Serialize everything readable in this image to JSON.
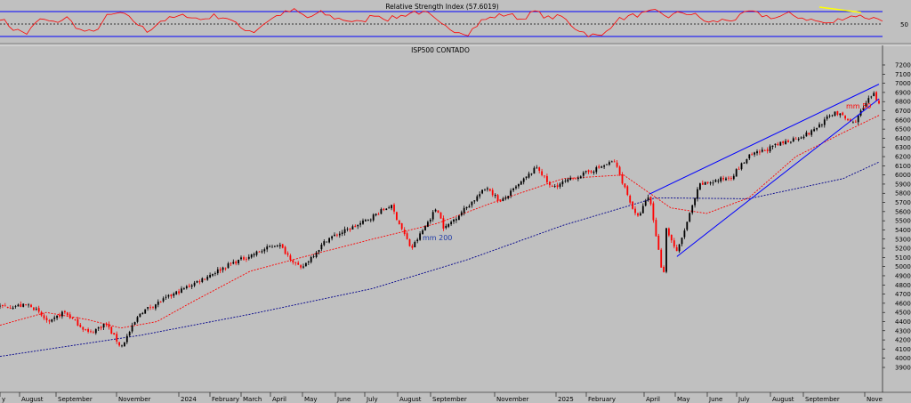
{
  "colors": {
    "background": "#c0c0c0",
    "rsi_line": "#ff0000",
    "rsi_band": "#0000ff",
    "trendline": "#0000ff",
    "ma50": "#ff0000",
    "ma200": "#00008b",
    "up_candle": "#000000",
    "down_candle": "#ff0000",
    "rsi_divergence": "#ffff00"
  },
  "chart_data": [
    {
      "type": "line",
      "panel": "rsi",
      "title": "Relative Strength Index (57.6019)",
      "y_tick_labels": [
        "50"
      ],
      "bands": [
        30,
        70
      ],
      "midline": 50,
      "ylim": [
        0,
        100
      ],
      "series": [
        {
          "values": [
            60,
            42,
            35,
            58,
            52,
            60,
            40,
            36,
            62,
            68,
            55,
            38,
            55,
            60,
            64,
            57,
            63,
            60,
            44,
            38,
            55,
            66,
            72,
            60,
            68,
            60,
            56,
            52,
            66,
            58,
            63,
            70,
            66,
            48,
            40,
            35,
            55,
            62,
            66,
            58,
            70,
            60,
            62,
            44,
            33,
            30,
            55,
            62,
            66,
            70,
            62,
            69,
            64,
            52,
            56,
            58,
            70,
            64,
            60,
            66,
            60,
            55,
            50,
            60,
            64,
            60,
            58
          ]
        }
      ]
    },
    {
      "type": "line",
      "panel": "price",
      "title": "ISP500 CONTADO",
      "ylim": [
        3800,
        7250
      ],
      "y_ticks": [
        3900,
        4000,
        4100,
        4200,
        4300,
        4400,
        4500,
        4600,
        4700,
        4800,
        4900,
        5000,
        5100,
        5200,
        5300,
        5400,
        5500,
        5600,
        5700,
        5800,
        5900,
        6000,
        6100,
        6200,
        6300,
        6400,
        6500,
        6600,
        6700,
        6800,
        6900,
        7000,
        7100,
        7200
      ],
      "x_tick_labels": [
        "y",
        "August",
        "September",
        "November",
        "2024",
        "February",
        "March",
        "April",
        "May",
        "June",
        "July",
        "August",
        "September",
        "November",
        "2025",
        "February",
        "April",
        "May",
        "June",
        "July",
        "August",
        "September",
        "Nove"
      ],
      "annotations": [
        "mm 200",
        "mm 50"
      ],
      "price_series": [
        {
          "date": "2023-07-01",
          "close": 4560
        },
        {
          "date": "2023-07-31",
          "close": 4580
        },
        {
          "date": "2023-08-18",
          "close": 4380
        },
        {
          "date": "2023-09-01",
          "close": 4510
        },
        {
          "date": "2023-09-26",
          "close": 4270
        },
        {
          "date": "2023-10-12",
          "close": 4380
        },
        {
          "date": "2023-10-27",
          "close": 4120
        },
        {
          "date": "2023-11-15",
          "close": 4500
        },
        {
          "date": "2023-12-29",
          "close": 4770
        },
        {
          "date": "2024-02-09",
          "close": 5020
        },
        {
          "date": "2024-03-28",
          "close": 5250
        },
        {
          "date": "2024-04-19",
          "close": 4970
        },
        {
          "date": "2024-05-15",
          "close": 5300
        },
        {
          "date": "2024-06-17",
          "close": 5470
        },
        {
          "date": "2024-07-16",
          "close": 5670
        },
        {
          "date": "2024-08-05",
          "close": 5190
        },
        {
          "date": "2024-08-30",
          "close": 5650
        },
        {
          "date": "2024-09-06",
          "close": 5410
        },
        {
          "date": "2024-10-18",
          "close": 5870
        },
        {
          "date": "2024-10-31",
          "close": 5700
        },
        {
          "date": "2024-12-06",
          "close": 6090
        },
        {
          "date": "2024-12-19",
          "close": 5860
        },
        {
          "date": "2025-02-19",
          "close": 6150
        },
        {
          "date": "2025-03-13",
          "close": 5520
        },
        {
          "date": "2025-03-25",
          "close": 5780
        },
        {
          "date": "2025-04-08",
          "close": 4850
        },
        {
          "date": "2025-04-09",
          "close": 5460
        },
        {
          "date": "2025-04-21",
          "close": 5150
        },
        {
          "date": "2025-05-13",
          "close": 5890
        },
        {
          "date": "2025-06-13",
          "close": 5980
        },
        {
          "date": "2025-06-30",
          "close": 6200
        },
        {
          "date": "2025-07-31",
          "close": 6340
        },
        {
          "date": "2025-08-29",
          "close": 6460
        },
        {
          "date": "2025-09-22",
          "close": 6690
        },
        {
          "date": "2025-10-10",
          "close": 6560
        },
        {
          "date": "2025-10-29",
          "close": 6890
        },
        {
          "date": "2025-11-04",
          "close": 6780
        }
      ],
      "ma50_series": [
        {
          "date": "2023-07-01",
          "close": 4360
        },
        {
          "date": "2023-08-15",
          "close": 4500
        },
        {
          "date": "2023-09-25",
          "close": 4420
        },
        {
          "date": "2023-10-27",
          "close": 4330
        },
        {
          "date": "2023-12-01",
          "close": 4400
        },
        {
          "date": "2024-01-02",
          "close": 4600
        },
        {
          "date": "2024-03-01",
          "close": 4950
        },
        {
          "date": "2024-04-30",
          "close": 5130
        },
        {
          "date": "2024-06-28",
          "close": 5300
        },
        {
          "date": "2024-08-30",
          "close": 5470
        },
        {
          "date": "2024-10-31",
          "close": 5730
        },
        {
          "date": "2024-12-31",
          "close": 5960
        },
        {
          "date": "2025-02-28",
          "close": 6000
        },
        {
          "date": "2025-04-15",
          "close": 5640
        },
        {
          "date": "2025-05-20",
          "close": 5580
        },
        {
          "date": "2025-06-30",
          "close": 5750
        },
        {
          "date": "2025-08-15",
          "close": 6200
        },
        {
          "date": "2025-09-30",
          "close": 6460
        },
        {
          "date": "2025-11-04",
          "close": 6650
        }
      ],
      "ma200_series": [
        {
          "date": "2023-07-01",
          "close": 4020
        },
        {
          "date": "2023-11-15",
          "close": 4250
        },
        {
          "date": "2024-03-01",
          "close": 4480
        },
        {
          "date": "2024-06-28",
          "close": 4760
        },
        {
          "date": "2024-09-30",
          "close": 5080
        },
        {
          "date": "2024-12-31",
          "close": 5450
        },
        {
          "date": "2025-03-31",
          "close": 5750
        },
        {
          "date": "2025-06-30",
          "close": 5740
        },
        {
          "date": "2025-09-30",
          "close": 5960
        },
        {
          "date": "2025-11-04",
          "close": 6140
        }
      ],
      "trendlines": [
        {
          "points": [
            {
              "date": "2025-03-25",
              "close": 5790
            },
            {
              "date": "2025-11-04",
              "close": 6990
            }
          ]
        },
        {
          "points": [
            {
              "date": "2025-04-21",
              "close": 5110
            },
            {
              "date": "2025-11-04",
              "close": 6830
            }
          ]
        }
      ]
    }
  ]
}
